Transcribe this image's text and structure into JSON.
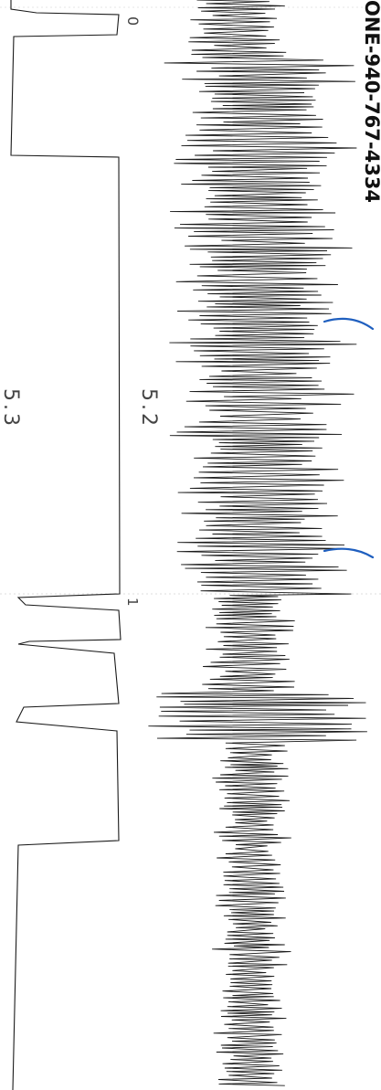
{
  "header_text": "ONE-940-767-4334",
  "markers": {
    "left": "0",
    "right": "1"
  },
  "section_labels": {
    "upper": "5.2",
    "lower": "5.3"
  },
  "colors": {
    "ink": "#1a1a1a",
    "annotation": "#1f5fbf",
    "paper": "#ffffff"
  }
}
